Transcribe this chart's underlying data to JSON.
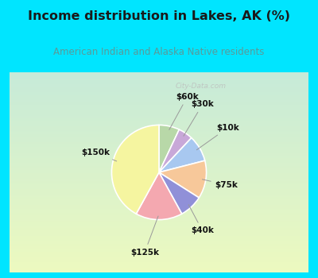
{
  "title": "Income distribution in Lakes, AK (%)",
  "subtitle": "American Indian and Alaska Native residents",
  "title_color": "#1a1a1a",
  "subtitle_color": "#5a9a9a",
  "background_color": "#00e5ff",
  "labels": [
    "$60k",
    "$30k",
    "$10k",
    "$75k",
    "$40k",
    "$125k",
    "$150k"
  ],
  "values": [
    7,
    5,
    9,
    13,
    8,
    16,
    42
  ],
  "colors": [
    "#b8d8a8",
    "#c8a8d8",
    "#a8c8f0",
    "#f7c89a",
    "#9090d8",
    "#f4a8b0",
    "#f5f5a0"
  ],
  "startangle": 90,
  "wedge_edge_color": "#ffffff"
}
